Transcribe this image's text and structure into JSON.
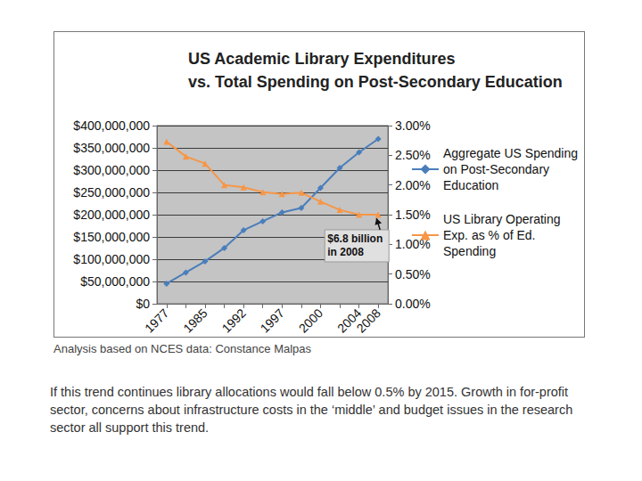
{
  "chart_data": {
    "type": "line",
    "title": "US Academic Library Expenditures\nvs. Total Spending on Post-Secondary Education",
    "categories": [
      "1977",
      null,
      "1985",
      null,
      "1992",
      null,
      "1997",
      null,
      "2000",
      null,
      "2004",
      "2008"
    ],
    "series": [
      {
        "name": "Aggregate US Spending on Post-Secondary Education",
        "color": "#4a7ebb",
        "marker": "diamond",
        "values": [
          45000000,
          70000000,
          95000000,
          125000000,
          165000000,
          185000000,
          205000000,
          215000000,
          260000000,
          305000000,
          340000000,
          370000000
        ]
      },
      {
        "name": "US Library Operating Exp. as % of Ed. Spending",
        "color": "#f79646",
        "marker": "triangle",
        "axis": "y2",
        "values": [
          2.73,
          2.48,
          2.36,
          2.0,
          1.96,
          1.88,
          1.85,
          1.87,
          1.72,
          1.58,
          1.5,
          1.5
        ]
      }
    ],
    "ylim": [
      0,
      400000000
    ],
    "yticks": [
      {
        "value": 0,
        "label": "$0"
      },
      {
        "value": 50000000,
        "label": "$50,000,000"
      },
      {
        "value": 100000000,
        "label": "$100,000,000"
      },
      {
        "value": 150000000,
        "label": "$150,000,000"
      },
      {
        "value": 200000000,
        "label": "$200,000,000"
      },
      {
        "value": 250000000,
        "label": "$250,000,000"
      },
      {
        "value": 300000000,
        "label": "$300,000,000"
      },
      {
        "value": 350000000,
        "label": "$350,000,000"
      },
      {
        "value": 400000000,
        "label": "$400,000,000"
      }
    ],
    "y2lim": [
      0,
      3
    ],
    "y2ticks": [
      {
        "value": 0,
        "label": "0.00%"
      },
      {
        "value": 0.5,
        "label": "0.50%"
      },
      {
        "value": 1,
        "label": "1.00%"
      },
      {
        "value": 1.5,
        "label": "1.50%"
      },
      {
        "value": 2,
        "label": "2.00%"
      },
      {
        "value": 2.5,
        "label": "2.50%"
      },
      {
        "value": 3,
        "label": "3.00%"
      }
    ],
    "grid": true,
    "legend": "right",
    "annotations": [
      {
        "text": "$6.8 billion\nin 2008"
      }
    ]
  },
  "caption": "Analysis based on NCES data: Constance Malpas",
  "body": "If this trend continues library allocations would fall below 0.5% by 2015. Growth in for-profit sector, concerns about infrastructure costs in the ‘middle’ and budget issues in the research sector all support this trend."
}
